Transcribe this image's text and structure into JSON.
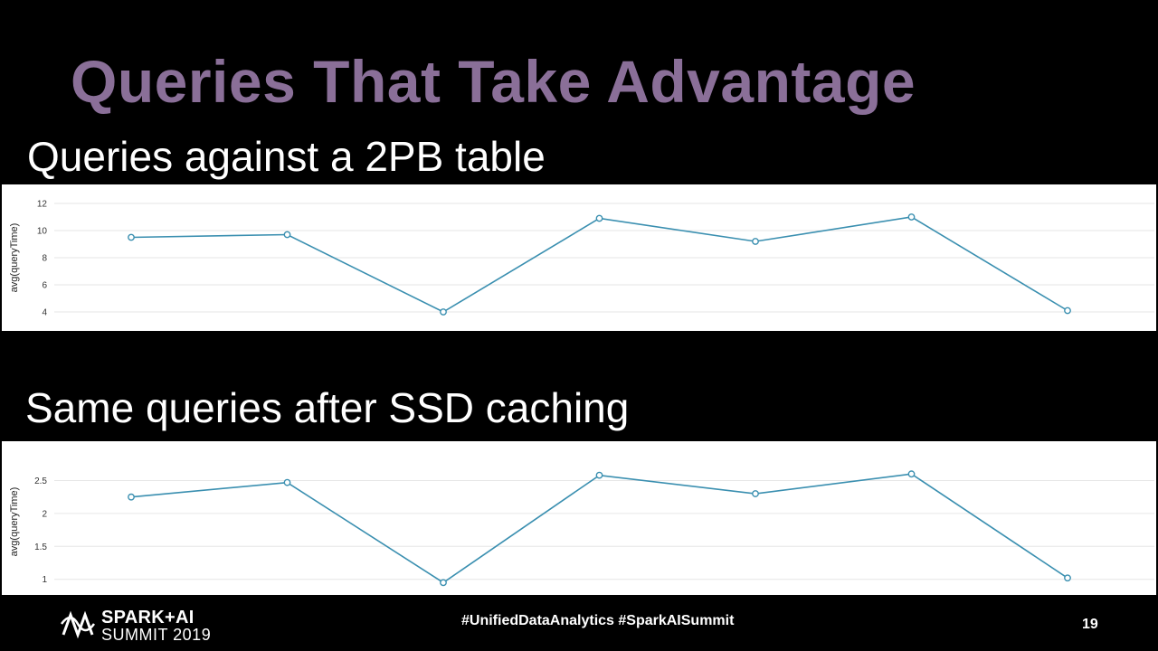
{
  "slide": {
    "title": "Queries That Take Advantage",
    "section1_heading": "Queries against a 2PB table",
    "section2_heading": "Same queries after SSD caching",
    "hashtags": "#UnifiedDataAnalytics #SparkAISummit",
    "page_number": "19"
  },
  "logo": {
    "line1": "SPARK+AI",
    "line2": "SUMMIT 2019"
  },
  "colors": {
    "title": "#8a6f98",
    "line": "#3a8fb0",
    "grid": "#e6e6e6"
  },
  "chart_data": [
    {
      "type": "line",
      "ylabel": "avg(queryTime)",
      "yticks": [
        4,
        6,
        8,
        10,
        12
      ],
      "ylim": [
        3.4,
        12.6
      ],
      "x": [
        1,
        2,
        3,
        4,
        5,
        6,
        7
      ],
      "series": [
        {
          "values": [
            9.5,
            9.7,
            4.0,
            10.9,
            9.2,
            11.0,
            4.1
          ]
        }
      ],
      "grid": true,
      "legend": "none"
    },
    {
      "type": "line",
      "ylabel": "avg(queryTime)",
      "yticks": [
        1,
        1.5,
        2,
        2.5
      ],
      "ylim": [
        0.9,
        2.85
      ],
      "x": [
        1,
        2,
        3,
        4,
        5,
        6,
        7
      ],
      "series": [
        {
          "values": [
            2.25,
            2.47,
            0.95,
            2.58,
            2.3,
            2.6,
            1.02
          ]
        }
      ],
      "grid": true,
      "legend": "none"
    }
  ]
}
